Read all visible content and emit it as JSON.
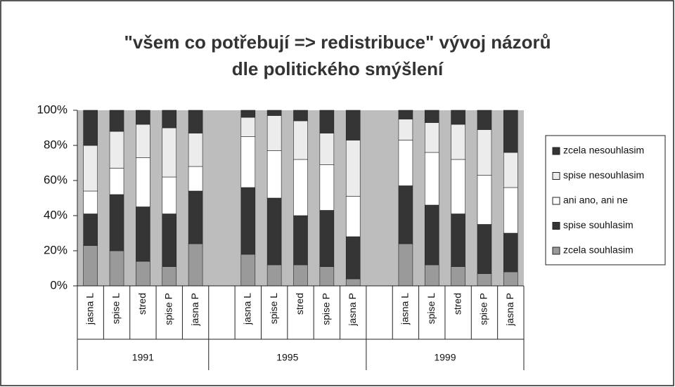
{
  "chart_data": {
    "type": "stacked_bar",
    "title": [
      "\"všem co potřebují => redistribuce\" vývoj názorů",
      "dle politického smýšlení"
    ],
    "categories": [
      "jasna L",
      "spise L",
      "stred",
      "spise P",
      "jasna P",
      null,
      "jasna L",
      "spise L",
      "stred",
      "spise P",
      "jasna P",
      null,
      "jasna L",
      "spise L",
      "stred",
      "spise P",
      "jasna P"
    ],
    "groups": [
      "1991",
      "1995",
      "1999"
    ],
    "series": [
      {
        "name": "zcela souhlasim",
        "color": "#9a9a9a",
        "values": [
          23,
          20,
          14,
          11,
          24,
          null,
          18,
          12,
          12,
          11,
          4,
          null,
          24,
          12,
          11,
          7,
          8
        ]
      },
      {
        "name": "spise souhlasim",
        "color": "#353535",
        "values": [
          18,
          32,
          31,
          30,
          30,
          null,
          38,
          38,
          28,
          32,
          24,
          null,
          33,
          34,
          30,
          28,
          22
        ]
      },
      {
        "name": "ani ano, ani ne",
        "color": "#ffffff",
        "values": [
          13,
          15,
          28,
          21,
          14,
          null,
          29,
          27,
          32,
          26,
          23,
          null,
          26,
          30,
          31,
          28,
          26
        ]
      },
      {
        "name": "spise nesouhlasim",
        "color": "#ececec",
        "values": [
          26,
          21,
          19,
          28,
          19,
          null,
          11,
          20,
          22,
          18,
          32,
          null,
          12,
          17,
          20,
          26,
          20
        ]
      },
      {
        "name": "zcela nesouhlasim",
        "color": "#353535",
        "values": [
          20,
          12,
          8,
          10,
          13,
          null,
          4,
          3,
          6,
          13,
          17,
          null,
          5,
          7,
          8,
          11,
          24
        ]
      }
    ],
    "ylim": [
      0,
      100
    ],
    "yticks": [
      {
        "value": 0,
        "label": "0%"
      },
      {
        "value": 20,
        "label": "20%"
      },
      {
        "value": 40,
        "label": "40%"
      },
      {
        "value": 60,
        "label": "60%"
      },
      {
        "value": 80,
        "label": "80%"
      },
      {
        "value": 100,
        "label": "100%"
      }
    ],
    "legend": "right"
  }
}
